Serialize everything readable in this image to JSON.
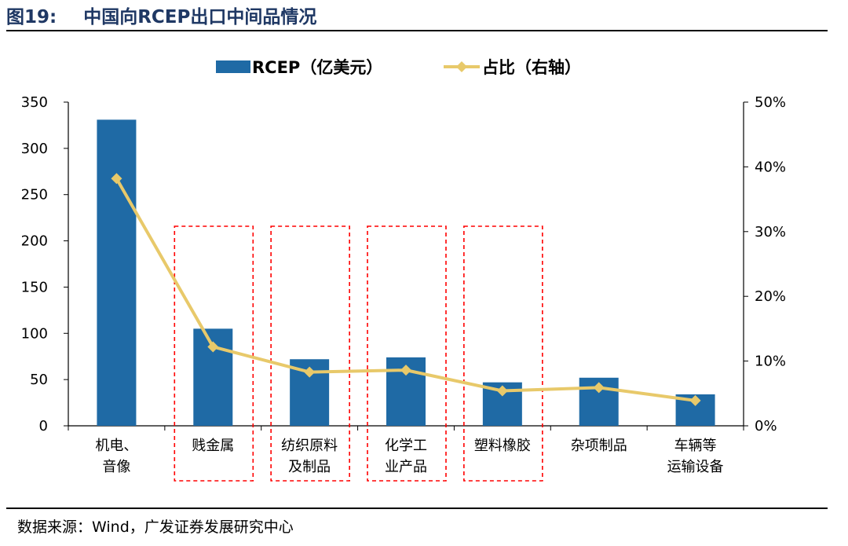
{
  "figure": {
    "number": "图19:",
    "title": "中国向RCEP出口中间品情况",
    "source": "数据来源：Wind，广发证券发展研究中心"
  },
  "chart_data": {
    "type": "bar+line",
    "categories": [
      [
        "机电、",
        "音像"
      ],
      [
        "贱金属"
      ],
      [
        "纺织原料",
        "及制品"
      ],
      [
        "化学工",
        "业产品"
      ],
      [
        "塑料橡胶"
      ],
      [
        "杂项制品"
      ],
      [
        "车辆等",
        "运输设备"
      ]
    ],
    "series": [
      {
        "name": "RCEP（亿美元）",
        "type": "bar",
        "axis": "left",
        "color": "#1f6aa5",
        "values": [
          331,
          105,
          72,
          74,
          47,
          52,
          34
        ]
      },
      {
        "name": "占比（右轴）",
        "type": "line",
        "axis": "right",
        "color": "#e8c96a",
        "values": [
          38.2,
          12.2,
          8.3,
          8.6,
          5.4,
          5.9,
          3.9
        ]
      }
    ],
    "y_left": {
      "min": 0,
      "max": 350,
      "ticks": [
        "0",
        "50",
        "100",
        "150",
        "200",
        "250",
        "300",
        "350"
      ]
    },
    "y_right": {
      "min": 0,
      "max": 50,
      "ticks": [
        "0%",
        "10%",
        "20%",
        "30%",
        "40%",
        "50%"
      ]
    },
    "highlighted_categories": [
      1,
      2,
      3,
      4
    ],
    "highlight_color": "#ff0000",
    "legend_position": "top-center"
  }
}
